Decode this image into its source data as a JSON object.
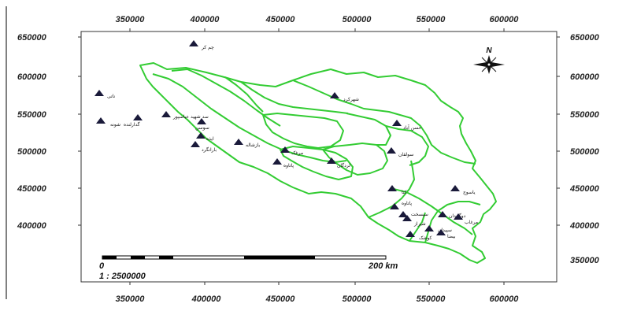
{
  "map": {
    "x_ticks": [
      "350000",
      "400000",
      "450000",
      "500000",
      "550000",
      "600000"
    ],
    "y_ticks_left": [
      "650000",
      "600000",
      "550000",
      "500000",
      "450000",
      "400000"
    ],
    "y_ticks_right": [
      "650000",
      "600000",
      "550000",
      "500000",
      "450000",
      "400000",
      "350000"
    ],
    "y_bottom_right_outside": "350000",
    "north_label": "N",
    "scale": {
      "start": "0",
      "end": "200 km",
      "ratio": "1 : 2500000"
    },
    "boundary_color": "#33cc33",
    "station_color": "#1a1a3a"
  },
  "stations": [
    {
      "name": "چم کر"
    },
    {
      "name": "ناتی"
    },
    {
      "name": "شونه"
    },
    {
      "name": "گدارلنده"
    },
    {
      "name": "سد شهید عباسپور"
    },
    {
      "name": "سوسن"
    },
    {
      "name": "ایذه"
    },
    {
      "name": "بارانگرد"
    },
    {
      "name": "بازشاله"
    },
    {
      "name": "مرغک"
    },
    {
      "name": "پاتاوه"
    },
    {
      "name": "لردگان"
    },
    {
      "name": "شهرکرد"
    },
    {
      "name": "حسن آباد"
    },
    {
      "name": "سولقان"
    },
    {
      "name": "کتا"
    },
    {
      "name": "یاسوج"
    },
    {
      "name": "پاتاوه"
    },
    {
      "name": "سیسخت"
    },
    {
      "name": "شیراز"
    },
    {
      "name": "دوگنبدان"
    },
    {
      "name": "مرغاب"
    },
    {
      "name": "سپیدان"
    },
    {
      "name": "کوشک"
    },
    {
      "name": "بیضا"
    }
  ]
}
